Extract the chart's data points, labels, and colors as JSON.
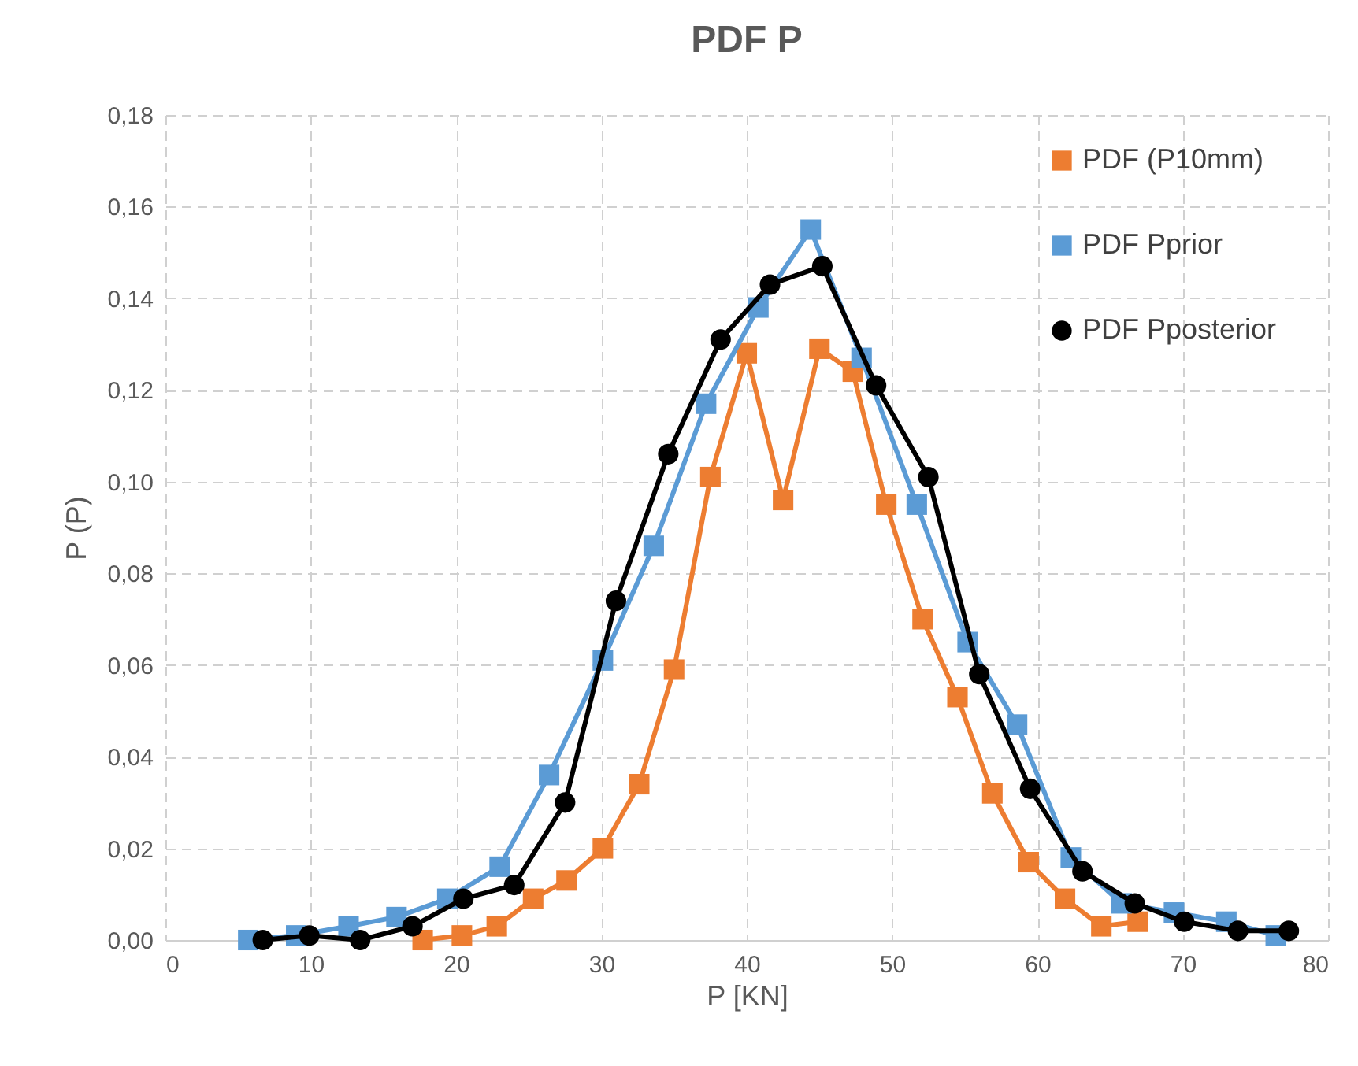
{
  "chart_data": {
    "type": "line",
    "title": "PDF P",
    "xlabel": "P [KN]",
    "ylabel": "P (P)",
    "xlim": [
      0,
      80
    ],
    "xticks": [
      0,
      10,
      20,
      30,
      40,
      50,
      60,
      70,
      80
    ],
    "ylim": [
      0,
      0.18
    ],
    "yticks": [
      {
        "value": 0,
        "label": "0,00"
      },
      {
        "value": 0.02,
        "label": "0,02"
      },
      {
        "value": 0.04,
        "label": "0,04"
      },
      {
        "value": 0.06,
        "label": "0,06"
      },
      {
        "value": 0.08,
        "label": "0,08"
      },
      {
        "value": 0.1,
        "label": "0,10"
      },
      {
        "value": 0.12,
        "label": "0,12"
      },
      {
        "value": 0.14,
        "label": "0,14"
      },
      {
        "value": 0.16,
        "label": "0,16"
      },
      {
        "value": 0.18,
        "label": "0,18"
      }
    ],
    "grid": true,
    "legend": "right",
    "line_style": "solid",
    "series": [
      {
        "name": "PDF (P10mm)",
        "color": "#ed7d31",
        "marker": "square",
        "x": [
          17.7,
          20.4,
          22.8,
          25.3,
          27.6,
          30.1,
          32.6,
          35.0,
          37.5,
          40.0,
          42.5,
          45.0,
          47.3,
          49.6,
          52.1,
          54.5,
          56.9,
          59.4,
          61.9,
          64.4,
          66.9
        ],
        "values": [
          0.0,
          0.001,
          0.003,
          0.009,
          0.013,
          0.02,
          0.034,
          0.059,
          0.101,
          0.128,
          0.096,
          0.129,
          0.124,
          0.095,
          0.07,
          0.053,
          0.032,
          0.017,
          0.009,
          0.003,
          0.004
        ]
      },
      {
        "name": "PDF Pprior",
        "color": "#5b9bd5",
        "marker": "square",
        "x": [
          5.7,
          9.0,
          12.6,
          15.9,
          19.4,
          23.0,
          26.4,
          30.1,
          33.6,
          37.2,
          40.8,
          44.4,
          47.9,
          51.7,
          55.2,
          58.6,
          62.3,
          65.8,
          69.4,
          73.0,
          76.4
        ],
        "values": [
          0.0,
          0.001,
          0.003,
          0.005,
          0.009,
          0.016,
          0.036,
          0.061,
          0.086,
          0.117,
          0.138,
          0.155,
          0.127,
          0.095,
          0.065,
          0.047,
          0.018,
          0.008,
          0.006,
          0.004,
          0.001
        ]
      },
      {
        "name": "PDF Pposterior",
        "color": "#000000",
        "marker": "circle",
        "x": [
          6.7,
          9.9,
          13.4,
          17.0,
          20.5,
          24.0,
          27.5,
          31.0,
          34.6,
          38.2,
          41.6,
          45.2,
          48.9,
          52.5,
          56.0,
          59.5,
          63.1,
          66.7,
          70.1,
          73.8,
          77.3
        ],
        "values": [
          0.0,
          0.001,
          0.0,
          0.003,
          0.009,
          0.012,
          0.03,
          0.074,
          0.106,
          0.131,
          0.143,
          0.147,
          0.121,
          0.101,
          0.058,
          0.033,
          0.015,
          0.008,
          0.004,
          0.002,
          0.002
        ]
      }
    ]
  }
}
